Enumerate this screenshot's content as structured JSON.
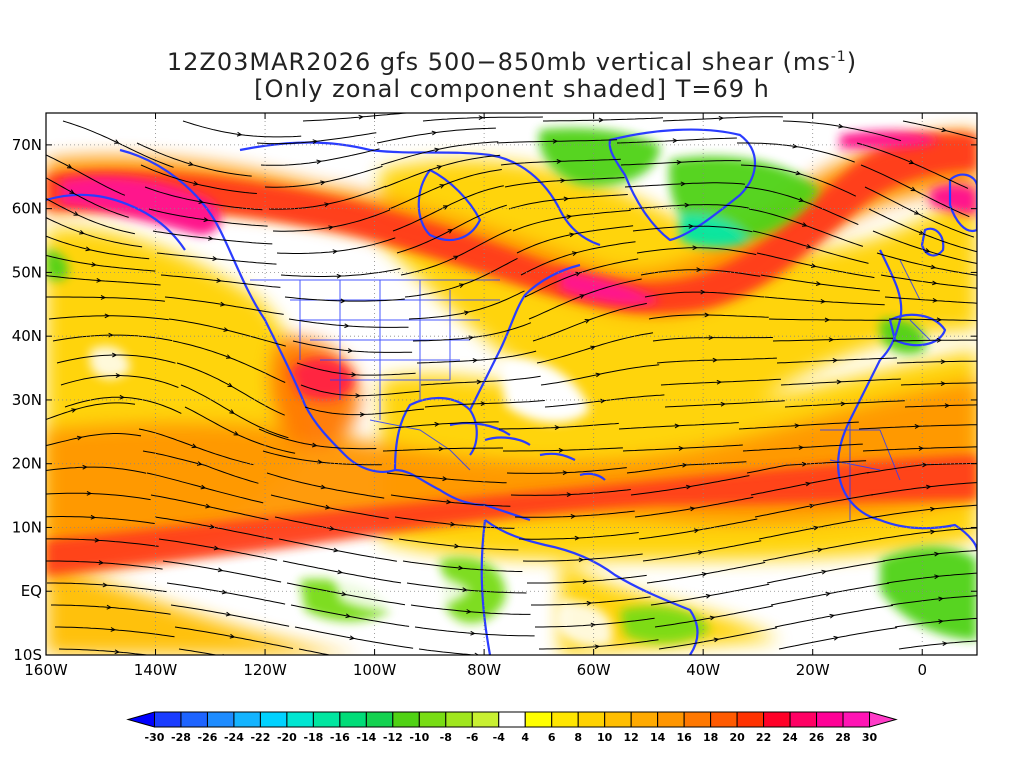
{
  "title": {
    "line1_prefix": "12Z03MAR2026 gfs 500−850mb vertical shear (ms",
    "line1_sup": "-1",
    "line1_suffix": ")",
    "line2": "[Only zonal component shaded] T=69 h"
  },
  "map_extent": {
    "lon_min": -160,
    "lon_max": 10,
    "lat_min": -10,
    "lat_max": 75
  },
  "lat_ticks": [
    {
      "lat": 70,
      "label": "70N"
    },
    {
      "lat": 60,
      "label": "60N"
    },
    {
      "lat": 50,
      "label": "50N"
    },
    {
      "lat": 40,
      "label": "40N"
    },
    {
      "lat": 30,
      "label": "30N"
    },
    {
      "lat": 20,
      "label": "20N"
    },
    {
      "lat": 10,
      "label": "10N"
    },
    {
      "lat": 0,
      "label": "EQ"
    },
    {
      "lat": -10,
      "label": "10S"
    }
  ],
  "lon_ticks": [
    {
      "lon": -160,
      "label": "160W"
    },
    {
      "lon": -140,
      "label": "140W"
    },
    {
      "lon": -120,
      "label": "120W"
    },
    {
      "lon": -100,
      "label": "100W"
    },
    {
      "lon": -80,
      "label": "80W"
    },
    {
      "lon": -60,
      "label": "60W"
    },
    {
      "lon": -40,
      "label": "40W"
    },
    {
      "lon": -20,
      "label": "20W"
    },
    {
      "lon": 0,
      "label": "0"
    }
  ],
  "colorbar": {
    "labels": [
      "-30",
      "-28",
      "-26",
      "-24",
      "-22",
      "-20",
      "-18",
      "-16",
      "-14",
      "-12",
      "-10",
      "-8",
      "-6",
      "-4",
      "4",
      "6",
      "8",
      "10",
      "12",
      "14",
      "16",
      "18",
      "20",
      "22",
      "24",
      "26",
      "28",
      "30"
    ],
    "colors": [
      "#0000ff",
      "#1a3cff",
      "#1e64ff",
      "#1e8cff",
      "#14b4ff",
      "#00d2ff",
      "#00e6d2",
      "#00e6a0",
      "#00dc78",
      "#14d250",
      "#50d214",
      "#78dc14",
      "#a0e61e",
      "#c8f032",
      "#ffffff",
      "#ffff00",
      "#ffe600",
      "#ffd200",
      "#ffbe00",
      "#ffaa00",
      "#ff9600",
      "#ff7800",
      "#ff5a00",
      "#ff3200",
      "#ff0028",
      "#ff0064",
      "#ff0096",
      "#ff14b4",
      "#ff3cc8"
    ]
  },
  "colors": {
    "coast": "#2a3cff",
    "streamline": "#000000",
    "jet_core": "#ff1e96",
    "jet_red": "#ff2a1e",
    "jet_orange": "#ff8c00",
    "shear_yellow": "#ffd200",
    "shear_green": "#50d214"
  }
}
